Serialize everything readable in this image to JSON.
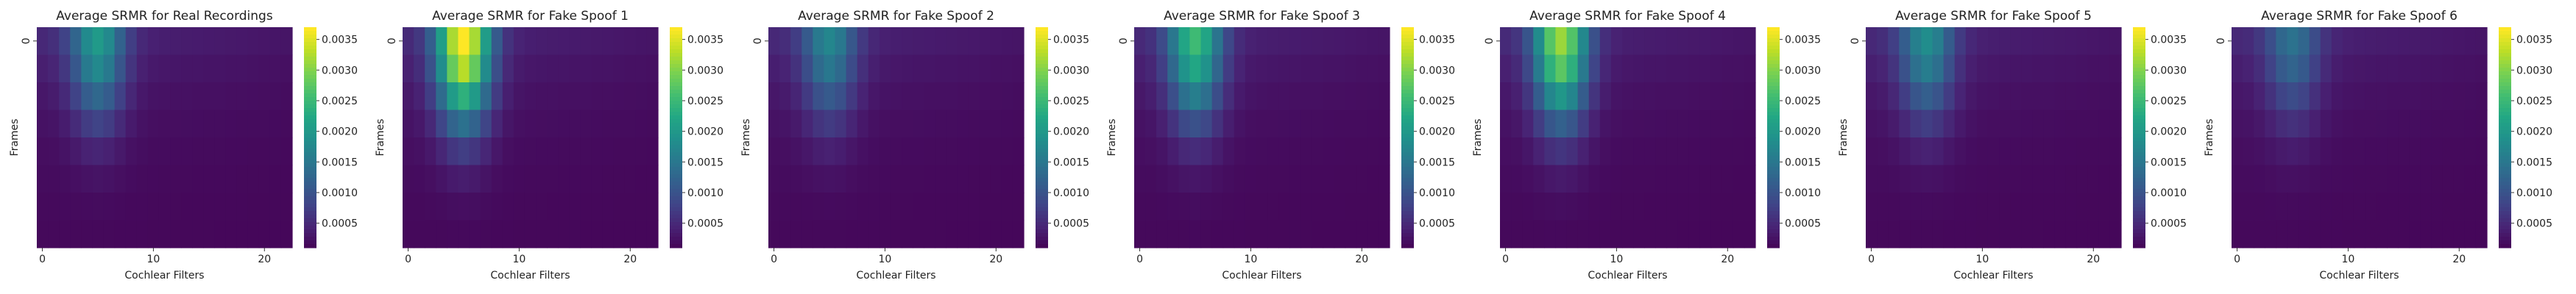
{
  "figure": {
    "colormap": "viridis",
    "cbar_ticks": [
      "0.0005",
      "0.0010",
      "0.0015",
      "0.0020",
      "0.0025",
      "0.0030",
      "0.0035"
    ],
    "cbar_tick_values": [
      0.0005,
      0.001,
      0.0015,
      0.002,
      0.0025,
      0.003,
      0.0035
    ]
  },
  "chart_data": [
    {
      "type": "heatmap",
      "title": "Average SRMR for Real Recordings",
      "xlabel": "Cochlear Filters",
      "ylabel": "Frames",
      "x_ticks": [
        "0",
        "10",
        "20"
      ],
      "y_ticks": [
        "0"
      ],
      "vlim": [
        0.0001,
        0.0037
      ],
      "shape": [
        8,
        23
      ],
      "peak_value": 0.0019
    },
    {
      "type": "heatmap",
      "title": "Average SRMR for Fake Spoof 1",
      "xlabel": "Cochlear Filters",
      "ylabel": "Frames",
      "x_ticks": [
        "0",
        "10",
        "20"
      ],
      "y_ticks": [
        "0"
      ],
      "vlim": [
        0.0001,
        0.0037
      ],
      "shape": [
        8,
        23
      ],
      "peak_value": 0.0036
    },
    {
      "type": "heatmap",
      "title": "Average SRMR for Fake Spoof 2",
      "xlabel": "Cochlear Filters",
      "ylabel": "Frames",
      "x_ticks": [
        "0",
        "10",
        "20"
      ],
      "y_ticks": [
        "0"
      ],
      "vlim": [
        0.0001,
        0.0037
      ],
      "shape": [
        8,
        23
      ],
      "peak_value": 0.0016
    },
    {
      "type": "heatmap",
      "title": "Average SRMR for Fake Spoof 3",
      "xlabel": "Cochlear Filters",
      "ylabel": "Frames",
      "x_ticks": [
        "0",
        "10",
        "20"
      ],
      "y_ticks": [
        "0"
      ],
      "vlim": [
        0.0001,
        0.0037
      ],
      "shape": [
        8,
        23
      ],
      "peak_value": 0.0024
    },
    {
      "type": "heatmap",
      "title": "Average SRMR for Fake Spoof 4",
      "xlabel": "Cochlear Filters",
      "ylabel": "Frames",
      "x_ticks": [
        "0",
        "10",
        "20"
      ],
      "y_ticks": [
        "0"
      ],
      "vlim": [
        0.0001,
        0.0037
      ],
      "shape": [
        8,
        23
      ],
      "peak_value": 0.003
    },
    {
      "type": "heatmap",
      "title": "Average SRMR for Fake Spoof 5",
      "xlabel": "Cochlear Filters",
      "ylabel": "Frames",
      "x_ticks": [
        "0",
        "10",
        "20"
      ],
      "y_ticks": [
        "0"
      ],
      "vlim": [
        0.0001,
        0.0037
      ],
      "shape": [
        8,
        23
      ],
      "peak_value": 0.0017
    },
    {
      "type": "heatmap",
      "title": "Average SRMR for Fake Spoof 6",
      "xlabel": "Cochlear Filters",
      "ylabel": "Frames",
      "x_ticks": [
        "0",
        "10",
        "20"
      ],
      "y_ticks": [
        "0"
      ],
      "vlim": [
        0.0001,
        0.0037
      ],
      "shape": [
        8,
        23
      ],
      "peak_value": 0.0013
    }
  ]
}
